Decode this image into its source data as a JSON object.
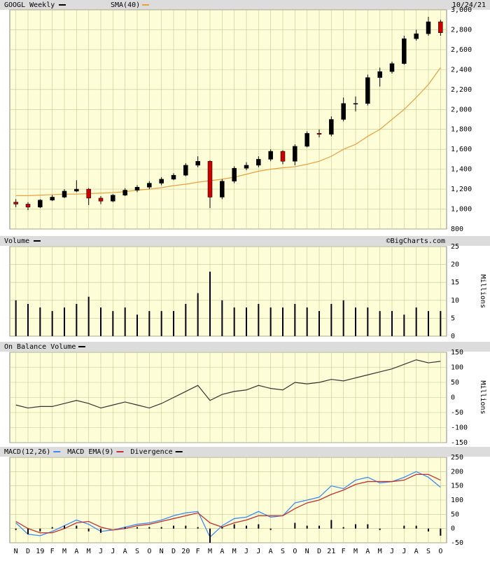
{
  "chart_data": [
    {
      "type": "candlestick",
      "title": "GOOGL Weekly",
      "date": "10/24/21",
      "up_color": "#000000",
      "down_color": "#cc0000",
      "open": [
        1070,
        1050,
        1020,
        1090,
        1120,
        1180,
        1200,
        1110,
        1080,
        1140,
        1190,
        1220,
        1260,
        1300,
        1340,
        1440,
        1480,
        1120,
        1280,
        1410,
        1440,
        1500,
        1580,
        1480,
        1630,
        1760,
        1750,
        1900,
        2060,
        2060,
        2320,
        2380,
        2460,
        2710,
        2760,
        2880
      ],
      "high": [
        1100,
        1070,
        1100,
        1140,
        1200,
        1290,
        1210,
        1130,
        1150,
        1210,
        1240,
        1280,
        1320,
        1360,
        1460,
        1530,
        1490,
        1300,
        1430,
        1470,
        1530,
        1600,
        1590,
        1650,
        1780,
        1800,
        1930,
        2120,
        2130,
        2350,
        2420,
        2480,
        2740,
        2800,
        2930,
        2900
      ],
      "low": [
        1020,
        990,
        1010,
        1080,
        1110,
        1170,
        1040,
        1050,
        1070,
        1130,
        1170,
        1200,
        1240,
        1290,
        1330,
        1420,
        1010,
        1100,
        1260,
        1390,
        1420,
        1480,
        1450,
        1440,
        1620,
        1720,
        1730,
        1880,
        1980,
        2040,
        2230,
        2360,
        2450,
        2690,
        2740,
        2740
      ],
      "close": [
        1050,
        1020,
        1090,
        1120,
        1180,
        1200,
        1110,
        1080,
        1140,
        1190,
        1220,
        1260,
        1300,
        1340,
        1440,
        1480,
        1120,
        1280,
        1410,
        1440,
        1500,
        1580,
        1480,
        1630,
        1760,
        1750,
        1900,
        2060,
        2060,
        2320,
        2380,
        2460,
        2710,
        2760,
        2880,
        2770
      ],
      "sma": {
        "name": "SMA(40)",
        "color": "#e8a040",
        "values": [
          1135,
          1135,
          1140,
          1145,
          1150,
          1150,
          1155,
          1160,
          1165,
          1175,
          1190,
          1200,
          1215,
          1235,
          1250,
          1270,
          1285,
          1300,
          1320,
          1350,
          1380,
          1400,
          1415,
          1425,
          1450,
          1480,
          1530,
          1600,
          1650,
          1730,
          1800,
          1900,
          2000,
          2120,
          2250,
          2420
        ]
      },
      "ylim": [
        800,
        3000
      ],
      "yticks": [
        800,
        {
          "value": 1000,
          "label": "1,000"
        },
        {
          "value": 1200,
          "label": "1,200"
        },
        {
          "value": 1400,
          "label": "1,400"
        },
        {
          "value": 1600,
          "label": "1,600"
        },
        {
          "value": 1800,
          "label": "1,800"
        },
        {
          "value": 2000,
          "label": "2,000"
        },
        {
          "value": 2200,
          "label": "2,200"
        },
        {
          "value": 2400,
          "label": "2,400"
        },
        {
          "value": 2600,
          "label": "2,600"
        },
        {
          "value": 2800,
          "label": "2,800"
        },
        {
          "value": 3000,
          "label": "3,000"
        }
      ]
    },
    {
      "type": "bar",
      "title": "Volume",
      "credit": "©BigCharts.com",
      "y_label": "Millions",
      "color": "#000000",
      "values": [
        10,
        9,
        8,
        7,
        8,
        9,
        11,
        8,
        7,
        8,
        6,
        7,
        7,
        7,
        9,
        12,
        18,
        10,
        8,
        8,
        9,
        8,
        8,
        9,
        8,
        7,
        9,
        10,
        8,
        8,
        7,
        7,
        6,
        8,
        7,
        7
      ],
      "ylim": [
        0,
        25
      ],
      "yticks": [
        0,
        5,
        10,
        15,
        20,
        25
      ]
    },
    {
      "type": "line",
      "title": "On Balance Volume",
      "y_label": "Millions",
      "color": "#333333",
      "values": [
        -25,
        -35,
        -30,
        -30,
        -20,
        -10,
        -20,
        -35,
        -25,
        -15,
        -25,
        -35,
        -20,
        0,
        20,
        40,
        -10,
        10,
        20,
        25,
        40,
        30,
        25,
        50,
        45,
        50,
        60,
        55,
        65,
        75,
        85,
        95,
        110,
        125,
        115,
        120
      ],
      "ylim": [
        -150,
        150
      ],
      "yticks": [
        -150,
        -100,
        -50,
        0,
        50,
        100,
        150
      ]
    },
    {
      "type": "macd",
      "series": [
        {
          "name": "MACD(12,26)",
          "color": "#3c8cf0",
          "values": [
            20,
            -20,
            -25,
            -10,
            10,
            30,
            15,
            -10,
            -5,
            5,
            15,
            20,
            30,
            45,
            55,
            60,
            -30,
            10,
            35,
            40,
            60,
            40,
            45,
            90,
            100,
            110,
            150,
            140,
            170,
            180,
            160,
            165,
            180,
            200,
            180,
            145
          ]
        },
        {
          "name": "MACD EMA(9)",
          "color": "#c03030",
          "values": [
            25,
            0,
            -15,
            -15,
            0,
            20,
            25,
            5,
            -5,
            0,
            10,
            15,
            25,
            35,
            45,
            55,
            20,
            5,
            20,
            30,
            45,
            45,
            45,
            70,
            90,
            100,
            120,
            135,
            155,
            165,
            165,
            165,
            170,
            190,
            190,
            170
          ]
        },
        {
          "name": "Divergence",
          "color": "#000000",
          "values": [
            -5,
            -20,
            -10,
            5,
            10,
            10,
            -10,
            -15,
            0,
            5,
            5,
            5,
            5,
            10,
            10,
            5,
            -50,
            5,
            15,
            10,
            15,
            -5,
            0,
            20,
            10,
            10,
            30,
            5,
            15,
            15,
            -5,
            0,
            10,
            10,
            -10,
            -25
          ]
        }
      ],
      "ylim": [
        -50,
        250
      ],
      "yticks": [
        -50,
        0,
        50,
        100,
        150,
        200,
        250
      ],
      "categories": [
        "N",
        "D",
        "19",
        "F",
        "M",
        "A",
        "M",
        "J",
        "J",
        "A",
        "S",
        "O",
        "N",
        "D",
        "20",
        "F",
        "M",
        "A",
        "M",
        "J",
        "J",
        "A",
        "S",
        "O",
        "N",
        "D",
        "21",
        "F",
        "M",
        "A",
        "M",
        "J",
        "J",
        "A",
        "S",
        "O"
      ]
    }
  ]
}
